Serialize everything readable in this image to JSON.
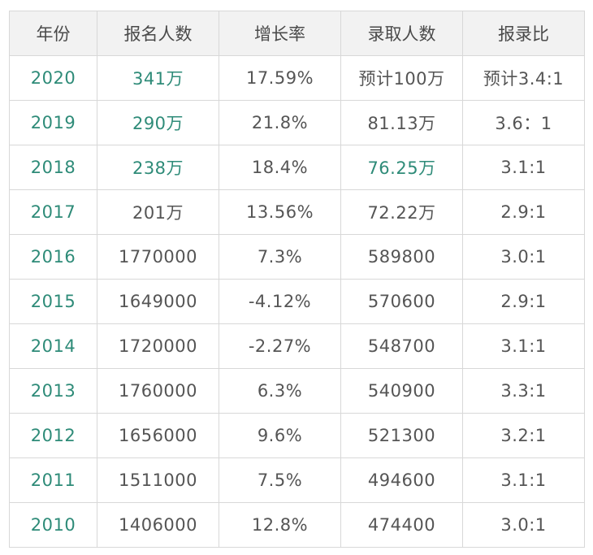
{
  "colors": {
    "accent_green": "#2e8b78",
    "text_gray": "#555555",
    "header_bg": "#f2f2f2",
    "border": "#d8d8d8"
  },
  "table": {
    "headers": [
      "年份",
      "报名人数",
      "增长率",
      "录取人数",
      "报录比"
    ],
    "rows": [
      {
        "year": "2020",
        "applicants": "341万",
        "growth": "17.59%",
        "admitted": "预计100万",
        "ratio": "预计3.4:1",
        "green": [
          true,
          true,
          false,
          false,
          false
        ]
      },
      {
        "year": "2019",
        "applicants": "290万",
        "growth": "21.8%",
        "admitted": "81.13万",
        "ratio": "3.6：1",
        "green": [
          true,
          true,
          false,
          false,
          false
        ]
      },
      {
        "year": "2018",
        "applicants": "238万",
        "growth": "18.4%",
        "admitted": "76.25万",
        "ratio": "3.1:1",
        "green": [
          true,
          true,
          false,
          true,
          false
        ]
      },
      {
        "year": "2017",
        "applicants": "201万",
        "growth": "13.56%",
        "admitted": "72.22万",
        "ratio": "2.9:1",
        "green": [
          true,
          false,
          false,
          false,
          false
        ]
      },
      {
        "year": "2016",
        "applicants": "1770000",
        "growth": "7.3%",
        "admitted": "589800",
        "ratio": "3.0:1",
        "green": [
          true,
          false,
          false,
          false,
          false
        ]
      },
      {
        "year": "2015",
        "applicants": "1649000",
        "growth": "-4.12%",
        "admitted": "570600",
        "ratio": "2.9:1",
        "green": [
          true,
          false,
          false,
          false,
          false
        ]
      },
      {
        "year": "2014",
        "applicants": "1720000",
        "growth": "-2.27%",
        "admitted": "548700",
        "ratio": "3.1:1",
        "green": [
          true,
          false,
          false,
          false,
          false
        ]
      },
      {
        "year": "2013",
        "applicants": "1760000",
        "growth": "6.3%",
        "admitted": "540900",
        "ratio": "3.3:1",
        "green": [
          true,
          false,
          false,
          false,
          false
        ]
      },
      {
        "year": "2012",
        "applicants": "1656000",
        "growth": "9.6%",
        "admitted": "521300",
        "ratio": "3.2:1",
        "green": [
          true,
          false,
          false,
          false,
          false
        ]
      },
      {
        "year": "2011",
        "applicants": "1511000",
        "growth": "7.5%",
        "admitted": "494600",
        "ratio": "3.1:1",
        "green": [
          true,
          false,
          false,
          false,
          false
        ]
      },
      {
        "year": "2010",
        "applicants": "1406000",
        "growth": "12.8%",
        "admitted": "474400",
        "ratio": "3.0:1",
        "green": [
          true,
          false,
          false,
          false,
          false
        ]
      }
    ]
  }
}
